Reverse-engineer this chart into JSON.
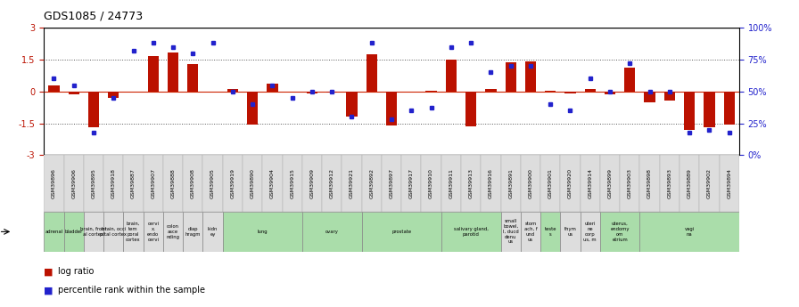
{
  "title": "GDS1085 / 24773",
  "gsm_labels": [
    "GSM39896",
    "GSM39906",
    "GSM39895",
    "GSM39918",
    "GSM39887",
    "GSM39907",
    "GSM39888",
    "GSM39908",
    "GSM39905",
    "GSM39919",
    "GSM39890",
    "GSM39904",
    "GSM39915",
    "GSM39909",
    "GSM39912",
    "GSM39921",
    "GSM39892",
    "GSM39897",
    "GSM39917",
    "GSM39910",
    "GSM39911",
    "GSM39913",
    "GSM39916",
    "GSM39891",
    "GSM39900",
    "GSM39901",
    "GSM39920",
    "GSM39914",
    "GSM39899",
    "GSM39903",
    "GSM39898",
    "GSM39893",
    "GSM39889",
    "GSM39902",
    "GSM39894"
  ],
  "log_ratio": [
    0.3,
    -0.15,
    -1.7,
    -0.3,
    0.0,
    1.65,
    1.85,
    1.3,
    0.0,
    0.1,
    -1.55,
    0.35,
    0.0,
    -0.1,
    -0.05,
    -1.2,
    1.75,
    -1.6,
    0.0,
    0.05,
    1.5,
    -1.65,
    0.1,
    1.35,
    1.4,
    0.05,
    -0.1,
    0.1,
    -0.15,
    1.1,
    -0.5,
    -0.45,
    -1.8,
    -1.7,
    -1.55
  ],
  "percentile": [
    60,
    55,
    18,
    45,
    82,
    88,
    85,
    80,
    88,
    50,
    40,
    55,
    45,
    50,
    50,
    30,
    88,
    28,
    35,
    37,
    85,
    88,
    65,
    70,
    70,
    40,
    35,
    60,
    50,
    72,
    50,
    50,
    18,
    20,
    18
  ],
  "tissue_groups": [
    {
      "label": "adrenal",
      "start": 0,
      "end": 1,
      "color": "#aaddaa"
    },
    {
      "label": "bladder",
      "start": 1,
      "end": 2,
      "color": "#aaddaa"
    },
    {
      "label": "brain, front\nal cortex",
      "start": 2,
      "end": 3,
      "color": "#dddddd"
    },
    {
      "label": "brain, occi\npital cortex",
      "start": 3,
      "end": 4,
      "color": "#dddddd"
    },
    {
      "label": "brain,\ntem\nporal\ncortex",
      "start": 4,
      "end": 5,
      "color": "#dddddd"
    },
    {
      "label": "cervi\nx,\nendo\ncervi",
      "start": 5,
      "end": 6,
      "color": "#dddddd"
    },
    {
      "label": "colon\nasce\nnding",
      "start": 6,
      "end": 7,
      "color": "#dddddd"
    },
    {
      "label": "diap\nhragm",
      "start": 7,
      "end": 8,
      "color": "#dddddd"
    },
    {
      "label": "kidn\ney",
      "start": 8,
      "end": 9,
      "color": "#dddddd"
    },
    {
      "label": "lung",
      "start": 9,
      "end": 13,
      "color": "#aaddaa"
    },
    {
      "label": "ovary",
      "start": 13,
      "end": 16,
      "color": "#aaddaa"
    },
    {
      "label": "prostate",
      "start": 16,
      "end": 20,
      "color": "#aaddaa"
    },
    {
      "label": "salivary gland,\nparotid",
      "start": 20,
      "end": 23,
      "color": "#aaddaa"
    },
    {
      "label": "small\nbowel,\nI, ducd\ndenu\nus",
      "start": 23,
      "end": 24,
      "color": "#dddddd"
    },
    {
      "label": "stom\nach, f\nund\nus",
      "start": 24,
      "end": 25,
      "color": "#dddddd"
    },
    {
      "label": "teste\ns",
      "start": 25,
      "end": 26,
      "color": "#aaddaa"
    },
    {
      "label": "thym\nus",
      "start": 26,
      "end": 27,
      "color": "#dddddd"
    },
    {
      "label": "uteri\nne\ncorp\nus, m",
      "start": 27,
      "end": 28,
      "color": "#dddddd"
    },
    {
      "label": "uterus,\nendomy\nom\netrium",
      "start": 28,
      "end": 30,
      "color": "#aaddaa"
    },
    {
      "label": "vagi\nna",
      "start": 30,
      "end": 35,
      "color": "#aaddaa"
    }
  ],
  "ylim": [
    -3,
    3
  ],
  "yticks_left": [
    -3,
    -1.5,
    0,
    1.5,
    3
  ],
  "yticks_right": [
    0,
    25,
    50,
    75,
    100
  ],
  "bar_color": "#bb1100",
  "dot_color": "#2222cc",
  "bg_color": "#ffffff",
  "hline_color": "#cc2200",
  "dot_line_color": "#555555"
}
